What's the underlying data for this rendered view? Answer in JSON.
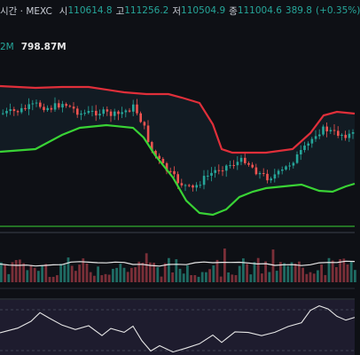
{
  "header": {
    "symbol": "시간 · MEXC",
    "open_label": "시",
    "open_value": "110614.8",
    "high_label": "고",
    "high_value": "111256.2",
    "low_label": "저",
    "low_value": "110504.9",
    "close_label": "종",
    "close_value": "111004.6",
    "change_value": "389.8",
    "change_pct": "(+0.35%)"
  },
  "volume_legend": {
    "ma_label": "2M",
    "volume_value": "798.87M"
  },
  "colors": {
    "background": "#0e1015",
    "bull_candle": "#26a69a",
    "bear_candle": "#ef5350",
    "upper_band": "#e02f3a",
    "lower_band": "#39d335",
    "volume_ma": "#e8e8e8",
    "oscillator_line": "#e6e6e6",
    "oscillator_fill": "#2a2540"
  }
}
